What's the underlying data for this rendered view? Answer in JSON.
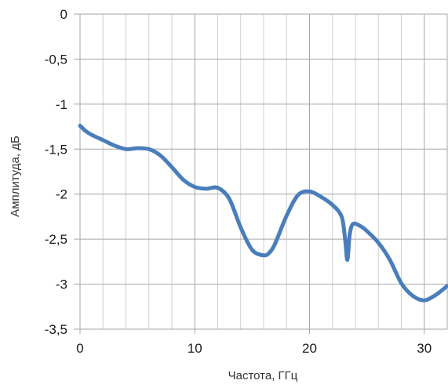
{
  "chart_data": {
    "type": "line",
    "title": "",
    "xlabel": "Частота, ГГц",
    "ylabel": "Амплитуда, дБ",
    "xlim": [
      0,
      32
    ],
    "ylim": [
      -3.5,
      0
    ],
    "x_ticks": [
      0,
      10,
      20,
      30
    ],
    "x_tick_labels": [
      "0",
      "10",
      "20",
      "30"
    ],
    "x_minor_step": 2,
    "y_ticks": [
      0,
      -0.5,
      -1,
      -1.5,
      -2,
      -2.5,
      -3,
      -3.5
    ],
    "y_tick_labels": [
      "0",
      "-0,5",
      "-1",
      "-1,5",
      "-2",
      "-2,5",
      "-3",
      "-3,5"
    ],
    "grid": true,
    "legend": "none",
    "series_color": "#4a7ebb",
    "series": [
      {
        "x": [
          0,
          0.5,
          1,
          2,
          3,
          4,
          5,
          6,
          7,
          8,
          9,
          10,
          11,
          12,
          13,
          14,
          15,
          16,
          16.5,
          17,
          18,
          19,
          20,
          21,
          22,
          22.8,
          23.1,
          23.3,
          23.5,
          23.8,
          24.5,
          25,
          26,
          27,
          28,
          29,
          30,
          31,
          32
        ],
        "y": [
          -1.24,
          -1.3,
          -1.34,
          -1.4,
          -1.46,
          -1.5,
          -1.49,
          -1.5,
          -1.57,
          -1.7,
          -1.84,
          -1.92,
          -1.94,
          -1.93,
          -2.05,
          -2.37,
          -2.62,
          -2.68,
          -2.65,
          -2.55,
          -2.24,
          -2.01,
          -1.97,
          -2.03,
          -2.12,
          -2.25,
          -2.5,
          -2.73,
          -2.45,
          -2.33,
          -2.36,
          -2.41,
          -2.54,
          -2.73,
          -2.99,
          -3.13,
          -3.18,
          -3.12,
          -3.02
        ]
      }
    ]
  }
}
